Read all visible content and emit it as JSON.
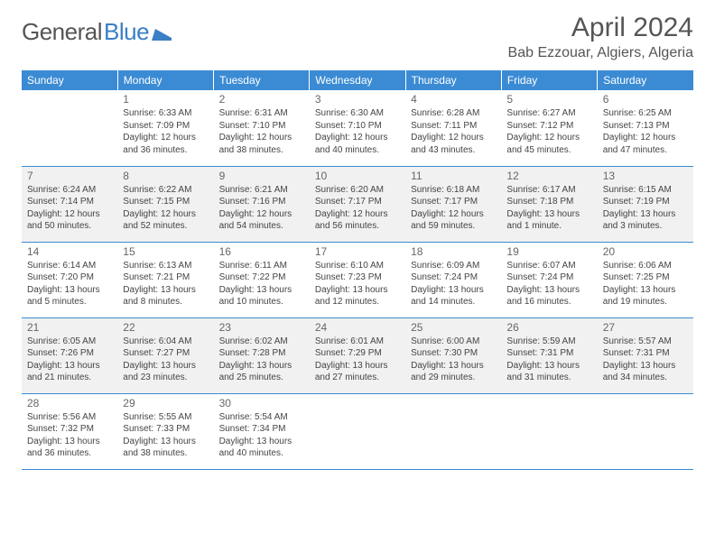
{
  "logo": {
    "text_gray": "General",
    "text_blue": "Blue"
  },
  "title": "April 2024",
  "location": "Bab Ezzouar, Algiers, Algeria",
  "day_headers": [
    "Sunday",
    "Monday",
    "Tuesday",
    "Wednesday",
    "Thursday",
    "Friday",
    "Saturday"
  ],
  "colors": {
    "header_bg": "#3b8bd4",
    "header_text": "#ffffff",
    "row_alt_bg": "#f1f1f1",
    "border": "#3b8bd4",
    "logo_gray": "#555555",
    "logo_blue": "#3b7fc4"
  },
  "weeks": [
    [
      {
        "num": "",
        "sunrise": "",
        "sunset": "",
        "day1": "",
        "day2": ""
      },
      {
        "num": "1",
        "sunrise": "Sunrise: 6:33 AM",
        "sunset": "Sunset: 7:09 PM",
        "day1": "Daylight: 12 hours",
        "day2": "and 36 minutes."
      },
      {
        "num": "2",
        "sunrise": "Sunrise: 6:31 AM",
        "sunset": "Sunset: 7:10 PM",
        "day1": "Daylight: 12 hours",
        "day2": "and 38 minutes."
      },
      {
        "num": "3",
        "sunrise": "Sunrise: 6:30 AM",
        "sunset": "Sunset: 7:10 PM",
        "day1": "Daylight: 12 hours",
        "day2": "and 40 minutes."
      },
      {
        "num": "4",
        "sunrise": "Sunrise: 6:28 AM",
        "sunset": "Sunset: 7:11 PM",
        "day1": "Daylight: 12 hours",
        "day2": "and 43 minutes."
      },
      {
        "num": "5",
        "sunrise": "Sunrise: 6:27 AM",
        "sunset": "Sunset: 7:12 PM",
        "day1": "Daylight: 12 hours",
        "day2": "and 45 minutes."
      },
      {
        "num": "6",
        "sunrise": "Sunrise: 6:25 AM",
        "sunset": "Sunset: 7:13 PM",
        "day1": "Daylight: 12 hours",
        "day2": "and 47 minutes."
      }
    ],
    [
      {
        "num": "7",
        "sunrise": "Sunrise: 6:24 AM",
        "sunset": "Sunset: 7:14 PM",
        "day1": "Daylight: 12 hours",
        "day2": "and 50 minutes."
      },
      {
        "num": "8",
        "sunrise": "Sunrise: 6:22 AM",
        "sunset": "Sunset: 7:15 PM",
        "day1": "Daylight: 12 hours",
        "day2": "and 52 minutes."
      },
      {
        "num": "9",
        "sunrise": "Sunrise: 6:21 AM",
        "sunset": "Sunset: 7:16 PM",
        "day1": "Daylight: 12 hours",
        "day2": "and 54 minutes."
      },
      {
        "num": "10",
        "sunrise": "Sunrise: 6:20 AM",
        "sunset": "Sunset: 7:17 PM",
        "day1": "Daylight: 12 hours",
        "day2": "and 56 minutes."
      },
      {
        "num": "11",
        "sunrise": "Sunrise: 6:18 AM",
        "sunset": "Sunset: 7:17 PM",
        "day1": "Daylight: 12 hours",
        "day2": "and 59 minutes."
      },
      {
        "num": "12",
        "sunrise": "Sunrise: 6:17 AM",
        "sunset": "Sunset: 7:18 PM",
        "day1": "Daylight: 13 hours",
        "day2": "and 1 minute."
      },
      {
        "num": "13",
        "sunrise": "Sunrise: 6:15 AM",
        "sunset": "Sunset: 7:19 PM",
        "day1": "Daylight: 13 hours",
        "day2": "and 3 minutes."
      }
    ],
    [
      {
        "num": "14",
        "sunrise": "Sunrise: 6:14 AM",
        "sunset": "Sunset: 7:20 PM",
        "day1": "Daylight: 13 hours",
        "day2": "and 5 minutes."
      },
      {
        "num": "15",
        "sunrise": "Sunrise: 6:13 AM",
        "sunset": "Sunset: 7:21 PM",
        "day1": "Daylight: 13 hours",
        "day2": "and 8 minutes."
      },
      {
        "num": "16",
        "sunrise": "Sunrise: 6:11 AM",
        "sunset": "Sunset: 7:22 PM",
        "day1": "Daylight: 13 hours",
        "day2": "and 10 minutes."
      },
      {
        "num": "17",
        "sunrise": "Sunrise: 6:10 AM",
        "sunset": "Sunset: 7:23 PM",
        "day1": "Daylight: 13 hours",
        "day2": "and 12 minutes."
      },
      {
        "num": "18",
        "sunrise": "Sunrise: 6:09 AM",
        "sunset": "Sunset: 7:24 PM",
        "day1": "Daylight: 13 hours",
        "day2": "and 14 minutes."
      },
      {
        "num": "19",
        "sunrise": "Sunrise: 6:07 AM",
        "sunset": "Sunset: 7:24 PM",
        "day1": "Daylight: 13 hours",
        "day2": "and 16 minutes."
      },
      {
        "num": "20",
        "sunrise": "Sunrise: 6:06 AM",
        "sunset": "Sunset: 7:25 PM",
        "day1": "Daylight: 13 hours",
        "day2": "and 19 minutes."
      }
    ],
    [
      {
        "num": "21",
        "sunrise": "Sunrise: 6:05 AM",
        "sunset": "Sunset: 7:26 PM",
        "day1": "Daylight: 13 hours",
        "day2": "and 21 minutes."
      },
      {
        "num": "22",
        "sunrise": "Sunrise: 6:04 AM",
        "sunset": "Sunset: 7:27 PM",
        "day1": "Daylight: 13 hours",
        "day2": "and 23 minutes."
      },
      {
        "num": "23",
        "sunrise": "Sunrise: 6:02 AM",
        "sunset": "Sunset: 7:28 PM",
        "day1": "Daylight: 13 hours",
        "day2": "and 25 minutes."
      },
      {
        "num": "24",
        "sunrise": "Sunrise: 6:01 AM",
        "sunset": "Sunset: 7:29 PM",
        "day1": "Daylight: 13 hours",
        "day2": "and 27 minutes."
      },
      {
        "num": "25",
        "sunrise": "Sunrise: 6:00 AM",
        "sunset": "Sunset: 7:30 PM",
        "day1": "Daylight: 13 hours",
        "day2": "and 29 minutes."
      },
      {
        "num": "26",
        "sunrise": "Sunrise: 5:59 AM",
        "sunset": "Sunset: 7:31 PM",
        "day1": "Daylight: 13 hours",
        "day2": "and 31 minutes."
      },
      {
        "num": "27",
        "sunrise": "Sunrise: 5:57 AM",
        "sunset": "Sunset: 7:31 PM",
        "day1": "Daylight: 13 hours",
        "day2": "and 34 minutes."
      }
    ],
    [
      {
        "num": "28",
        "sunrise": "Sunrise: 5:56 AM",
        "sunset": "Sunset: 7:32 PM",
        "day1": "Daylight: 13 hours",
        "day2": "and 36 minutes."
      },
      {
        "num": "29",
        "sunrise": "Sunrise: 5:55 AM",
        "sunset": "Sunset: 7:33 PM",
        "day1": "Daylight: 13 hours",
        "day2": "and 38 minutes."
      },
      {
        "num": "30",
        "sunrise": "Sunrise: 5:54 AM",
        "sunset": "Sunset: 7:34 PM",
        "day1": "Daylight: 13 hours",
        "day2": "and 40 minutes."
      },
      {
        "num": "",
        "sunrise": "",
        "sunset": "",
        "day1": "",
        "day2": ""
      },
      {
        "num": "",
        "sunrise": "",
        "sunset": "",
        "day1": "",
        "day2": ""
      },
      {
        "num": "",
        "sunrise": "",
        "sunset": "",
        "day1": "",
        "day2": ""
      },
      {
        "num": "",
        "sunrise": "",
        "sunset": "",
        "day1": "",
        "day2": ""
      }
    ]
  ]
}
